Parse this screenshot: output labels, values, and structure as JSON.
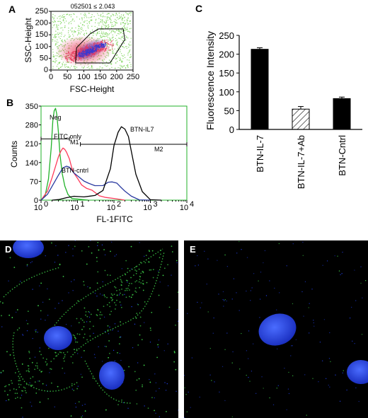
{
  "panel_labels": {
    "A": "A",
    "B": "B",
    "C": "C",
    "D": "D",
    "E": "E"
  },
  "colors": {
    "neg": "#22b22a",
    "fitc": "#ff3a5a",
    "cntrl": "#2a3aa0",
    "il7": "#000000",
    "bar": "#000000",
    "nucleus": "#1f3de0",
    "membrane": "#3fd64a",
    "scatter_green": "#6fcf4a",
    "scatter_red": "#e8345a",
    "scatter_blue": "#3a3ad0"
  },
  "chart_data": [
    {
      "panel": "A",
      "type": "scatter",
      "title": "052501 ≤ 2.043",
      "xlabel": "FSC-Height",
      "ylabel": "SSC-Height",
      "xlim": [
        0,
        250
      ],
      "ylim": [
        0,
        250
      ],
      "xticks": [
        "0",
        "50",
        "100",
        "150",
        "200",
        "250"
      ],
      "yticks": [
        "0",
        "50",
        "100",
        "150",
        "200",
        "250"
      ],
      "gate": [
        [
          78,
          95
        ],
        [
          120,
          155
        ],
        [
          145,
          175
        ],
        [
          220,
          175
        ],
        [
          225,
          130
        ],
        [
          180,
          30
        ],
        [
          75,
          30
        ]
      ]
    },
    {
      "panel": "B",
      "type": "line",
      "xlabel": "FL-1FITC",
      "ylabel": "Counts",
      "xscale": "log",
      "xlim": [
        1,
        10000
      ],
      "ylim": [
        0,
        350
      ],
      "xticks": [
        {
          "base": "10",
          "exp": "0"
        },
        {
          "base": "10",
          "exp": "1"
        },
        {
          "base": "10",
          "exp": "2"
        },
        {
          "base": "10",
          "exp": "3"
        },
        {
          "base": "10",
          "exp": "4"
        }
      ],
      "yticks": [
        "0",
        "70",
        "140",
        "210",
        "280",
        "350"
      ],
      "gates": [
        {
          "name": "M1",
          "x1": 1,
          "x2": 6,
          "y": 228
        },
        {
          "name": "M2",
          "x1": 12,
          "x2": 10000,
          "y": 208
        }
      ],
      "series": [
        {
          "name": "Neg",
          "x": [
            1,
            1.3,
            1.6,
            1.9,
            2.1,
            2.3,
            2.5,
            2.7,
            3,
            3.3,
            3.8,
            4.5,
            5.5,
            7,
            10,
            20
          ],
          "values": [
            0,
            20,
            80,
            200,
            290,
            335,
            345,
            320,
            250,
            170,
            100,
            50,
            20,
            8,
            3,
            0
          ]
        },
        {
          "name": "FITC only",
          "x": [
            1,
            1.5,
            2,
            2.5,
            3,
            3.5,
            4,
            4.5,
            5,
            6,
            7,
            8,
            10,
            13,
            18,
            25,
            40,
            60,
            100,
            200
          ],
          "values": [
            0,
            30,
            80,
            130,
            165,
            185,
            195,
            190,
            175,
            150,
            120,
            100,
            80,
            60,
            45,
            35,
            20,
            10,
            5,
            0
          ]
        },
        {
          "name": "BTN-cntrl",
          "x": [
            1,
            1.5,
            2,
            3,
            4,
            5,
            6,
            8,
            10,
            15,
            20,
            30,
            50,
            70,
            90,
            120,
            150,
            200,
            300,
            500,
            1000
          ],
          "values": [
            0,
            20,
            50,
            95,
            120,
            128,
            120,
            105,
            90,
            72,
            65,
            55,
            55,
            65,
            68,
            62,
            50,
            35,
            15,
            5,
            0
          ]
        },
        {
          "name": "BTN-IL7",
          "x": [
            2,
            3,
            5,
            8,
            15,
            30,
            50,
            80,
            100,
            130,
            160,
            200,
            250,
            300,
            400,
            600,
            1000,
            2000
          ],
          "values": [
            0,
            5,
            10,
            15,
            15,
            20,
            40,
            120,
            200,
            255,
            270,
            265,
            240,
            180,
            100,
            30,
            5,
            0
          ]
        }
      ],
      "labels": {
        "neg": "Neg",
        "fitc": "FITC only",
        "cntrl": "BTN-cntrl",
        "il7": "BTN-IL7",
        "m1": "M1",
        "m2": "M2"
      }
    },
    {
      "panel": "C",
      "type": "bar",
      "ylabel": "Fluorescence Intensity",
      "ylim": [
        0,
        250
      ],
      "yticks": [
        "0",
        "50",
        "100",
        "150",
        "200",
        "250"
      ],
      "categories": [
        "BTN-IL-7",
        "BTN-IL-7+Ab",
        "BTN-Cntrl"
      ],
      "values": [
        213,
        54,
        82
      ],
      "errors": [
        4,
        7,
        4
      ],
      "fills": [
        "solid",
        "hatched",
        "solid"
      ]
    }
  ]
}
